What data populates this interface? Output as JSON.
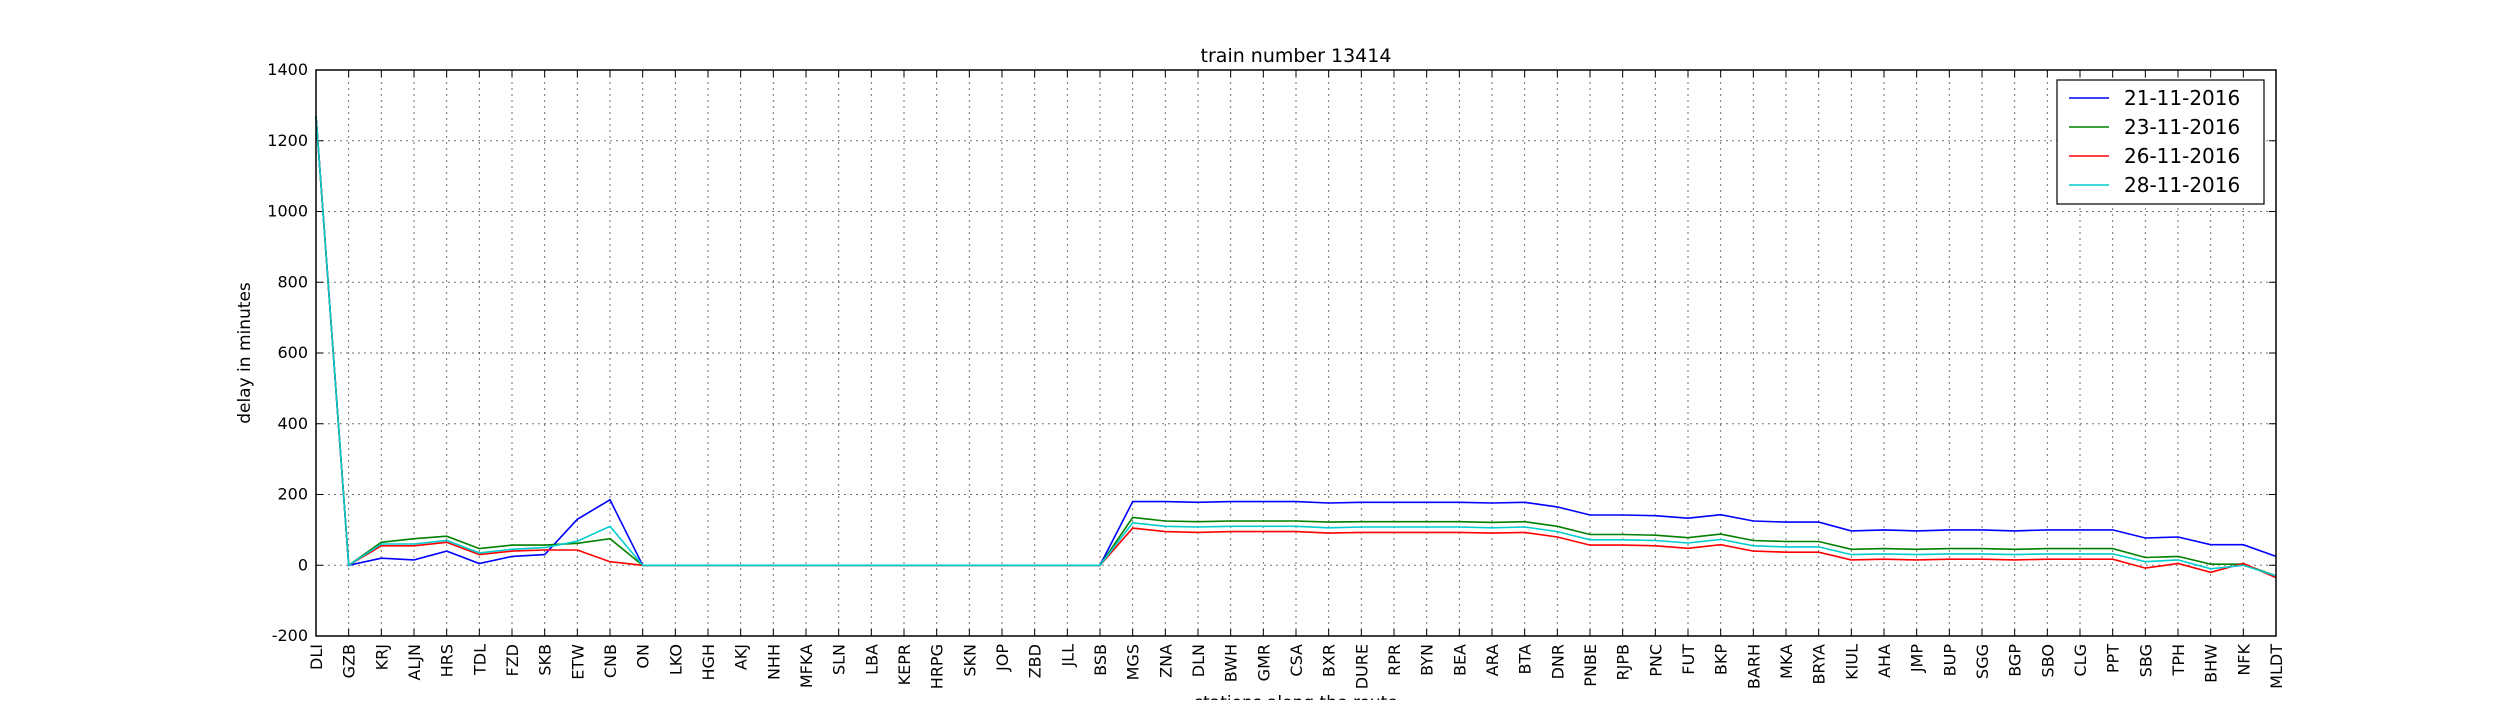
{
  "chart_data": {
    "type": "line",
    "title": "train number 13414",
    "xlabel": "stations along the route",
    "ylabel": "delay in minutes",
    "ylim": [
      -200,
      1400
    ],
    "yticks": [
      -200,
      0,
      200,
      400,
      600,
      800,
      1000,
      1200,
      1400
    ],
    "grid": true,
    "legend_position": "top-right",
    "categories": [
      "DLI",
      "GZB",
      "KRJ",
      "ALJN",
      "HRS",
      "TDL",
      "FZD",
      "SKB",
      "ETW",
      "CNB",
      "ON",
      "LKO",
      "HGH",
      "AKJ",
      "NHH",
      "MFKA",
      "SLN",
      "LBA",
      "KEPR",
      "HRPG",
      "SKN",
      "JOP",
      "ZBD",
      "JLL",
      "BSB",
      "MGS",
      "ZNA",
      "DLN",
      "BWH",
      "GMR",
      "CSA",
      "BXR",
      "DURE",
      "RPR",
      "BYN",
      "BEA",
      "ARA",
      "BTA",
      "DNR",
      "PNBE",
      "RJPB",
      "PNC",
      "FUT",
      "BKP",
      "BARH",
      "MKA",
      "BRYA",
      "KIUL",
      "AHA",
      "JMP",
      "BUP",
      "SGG",
      "BGP",
      "SBO",
      "CLG",
      "PPT",
      "SBG",
      "TPH",
      "BHW",
      "NFK",
      "MLDT"
    ],
    "series": [
      {
        "name": "21-11-2016",
        "color": "#0000ff",
        "values": [
          1270,
          0,
          20,
          15,
          40,
          5,
          25,
          30,
          130,
          185,
          0,
          0,
          0,
          0,
          0,
          0,
          0,
          0,
          0,
          0,
          0,
          0,
          0,
          0,
          0,
          180,
          180,
          178,
          180,
          180,
          180,
          176,
          178,
          178,
          178,
          178,
          176,
          178,
          165,
          142,
          142,
          140,
          133,
          143,
          125,
          122,
          122,
          97,
          100,
          97,
          100,
          100,
          97,
          100,
          100,
          100,
          77,
          80,
          58,
          58,
          25
        ]
      },
      {
        "name": "23-11-2016",
        "color": "#008000",
        "values": [
          1270,
          0,
          65,
          75,
          82,
          47,
          57,
          57,
          62,
          75,
          0,
          0,
          0,
          0,
          0,
          0,
          0,
          0,
          0,
          0,
          0,
          0,
          0,
          0,
          0,
          135,
          125,
          123,
          125,
          125,
          125,
          122,
          123,
          123,
          123,
          123,
          121,
          123,
          110,
          87,
          87,
          85,
          78,
          88,
          70,
          67,
          67,
          45,
          47,
          45,
          47,
          47,
          45,
          47,
          47,
          47,
          22,
          25,
          3,
          3,
          -30
        ]
      },
      {
        "name": "26-11-2016",
        "color": "#ff0000",
        "values": [
          1270,
          0,
          55,
          55,
          65,
          30,
          40,
          43,
          43,
          10,
          0,
          0,
          0,
          0,
          0,
          0,
          0,
          0,
          0,
          0,
          0,
          0,
          0,
          0,
          0,
          105,
          95,
          93,
          95,
          95,
          95,
          91,
          93,
          93,
          93,
          93,
          91,
          93,
          80,
          57,
          57,
          55,
          48,
          58,
          40,
          37,
          37,
          15,
          17,
          15,
          17,
          17,
          15,
          17,
          17,
          17,
          -8,
          5,
          -20,
          5,
          -35
        ]
      },
      {
        "name": "28-11-2016",
        "color": "#00cccc",
        "values": [
          1270,
          0,
          60,
          60,
          70,
          35,
          45,
          50,
          68,
          110,
          0,
          0,
          0,
          0,
          0,
          0,
          0,
          0,
          0,
          0,
          0,
          0,
          0,
          0,
          0,
          120,
          110,
          108,
          110,
          110,
          110,
          106,
          108,
          108,
          108,
          108,
          106,
          108,
          95,
          72,
          72,
          70,
          63,
          73,
          55,
          52,
          52,
          30,
          32,
          30,
          32,
          32,
          30,
          32,
          32,
          32,
          10,
          15,
          -10,
          0,
          -30
        ]
      }
    ]
  }
}
